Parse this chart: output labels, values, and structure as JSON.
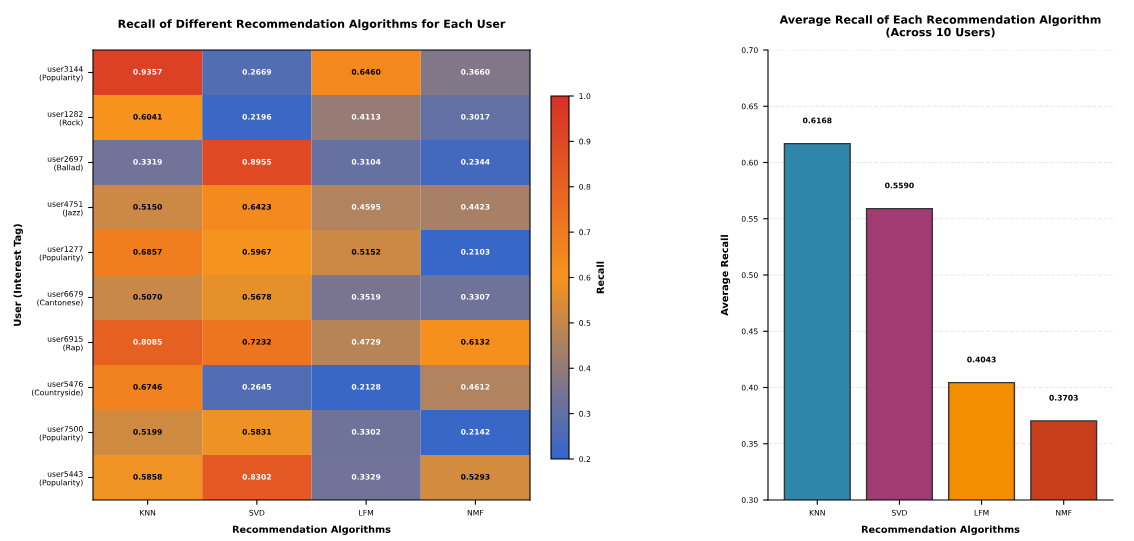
{
  "chart_data": [
    {
      "type": "heatmap",
      "title": "Recall of Different Recommendation Algorithms for Each User",
      "xlabel": "Recommendation Algorithms",
      "ylabel": "User (Interest Tag)",
      "clabel": "Recall",
      "categories": [
        "KNN",
        "SVD",
        "LFM",
        "NMF"
      ],
      "y_categories": [
        "user3144\n(Popularity)",
        "user1282\n(Rock)",
        "user2697\n(Ballad)",
        "user4751\n(Jazz)",
        "user1277\n(Popularity)",
        "user6679\n(Cantonese)",
        "user6915\n(Rap)",
        "user5476\n(Countryside)",
        "user7500\n(Popularity)",
        "user5443\n(Popularity)"
      ],
      "cells": [
        [
          0.9357,
          0.2669,
          0.646,
          0.366
        ],
        [
          0.6041,
          0.2196,
          0.4113,
          0.3017
        ],
        [
          0.3319,
          0.8955,
          0.3104,
          0.2344
        ],
        [
          0.515,
          0.6423,
          0.4595,
          0.4423
        ],
        [
          0.6857,
          0.5967,
          0.5152,
          0.2103
        ],
        [
          0.507,
          0.5678,
          0.3519,
          0.3307
        ],
        [
          0.8085,
          0.7232,
          0.4729,
          0.6132
        ],
        [
          0.6746,
          0.2645,
          0.2128,
          0.4612
        ],
        [
          0.5199,
          0.5831,
          0.3302,
          0.2142
        ],
        [
          0.5858,
          0.8302,
          0.3329,
          0.5293
        ]
      ],
      "cell_labels": [
        [
          "0.9357",
          "0.2669",
          "0.6460",
          "0.3660"
        ],
        [
          "0.6041",
          "0.2196",
          "0.4113",
          "0.3017"
        ],
        [
          "0.3319",
          "0.8955",
          "0.3104",
          "0.2344"
        ],
        [
          "0.5150",
          "0.6423",
          "0.4595",
          "0.4423"
        ],
        [
          "0.6857",
          "0.5967",
          "0.5152",
          "0.2103"
        ],
        [
          "0.5070",
          "0.5678",
          "0.3519",
          "0.3307"
        ],
        [
          "0.8085",
          "0.7232",
          "0.4729",
          "0.6132"
        ],
        [
          "0.6746",
          "0.2645",
          "0.2128",
          "0.4612"
        ],
        [
          "0.5199",
          "0.5831",
          "0.3302",
          "0.2142"
        ],
        [
          "0.5858",
          "0.8302",
          "0.3329",
          "0.5293"
        ]
      ],
      "clim": [
        0.2,
        1.0
      ],
      "cticks": [
        {
          "value": 0.2,
          "label": "0.2"
        },
        {
          "value": 0.3,
          "label": "0.3"
        },
        {
          "value": 0.4,
          "label": "0.4"
        },
        {
          "value": 0.5,
          "label": "0.5"
        },
        {
          "value": 0.6,
          "label": "0.6"
        },
        {
          "value": 0.7,
          "label": "0.7"
        },
        {
          "value": 0.8,
          "label": "0.8"
        },
        {
          "value": 0.9,
          "label": "0.9"
        },
        {
          "value": 1.0,
          "label": "1.0"
        }
      ]
    },
    {
      "type": "bar",
      "title": "Average Recall of Each Recommendation Algorithm\n(Across 10 Users)",
      "xlabel": "Recommendation Algorithms",
      "ylabel": "Average Recall",
      "categories": [
        "KNN",
        "SVD",
        "LFM",
        "NMF"
      ],
      "values": [
        0.6168,
        0.559,
        0.4043,
        0.3703
      ],
      "value_labels": [
        "0.6168",
        "0.5590",
        "0.4043",
        "0.3703"
      ],
      "colors": [
        "#2e86ab",
        "#a23b72",
        "#f18f01",
        "#c73e1d"
      ],
      "ylim": [
        0.3,
        0.7
      ],
      "yticks": [
        {
          "value": 0.3,
          "label": "0.30"
        },
        {
          "value": 0.35,
          "label": "0.35"
        },
        {
          "value": 0.4,
          "label": "0.40"
        },
        {
          "value": 0.45,
          "label": "0.45"
        },
        {
          "value": 0.5,
          "label": "0.50"
        },
        {
          "value": 0.55,
          "label": "0.55"
        },
        {
          "value": 0.6,
          "label": "0.60"
        },
        {
          "value": 0.65,
          "label": "0.65"
        },
        {
          "value": 0.7,
          "label": "0.70"
        }
      ],
      "grid": "y"
    }
  ]
}
